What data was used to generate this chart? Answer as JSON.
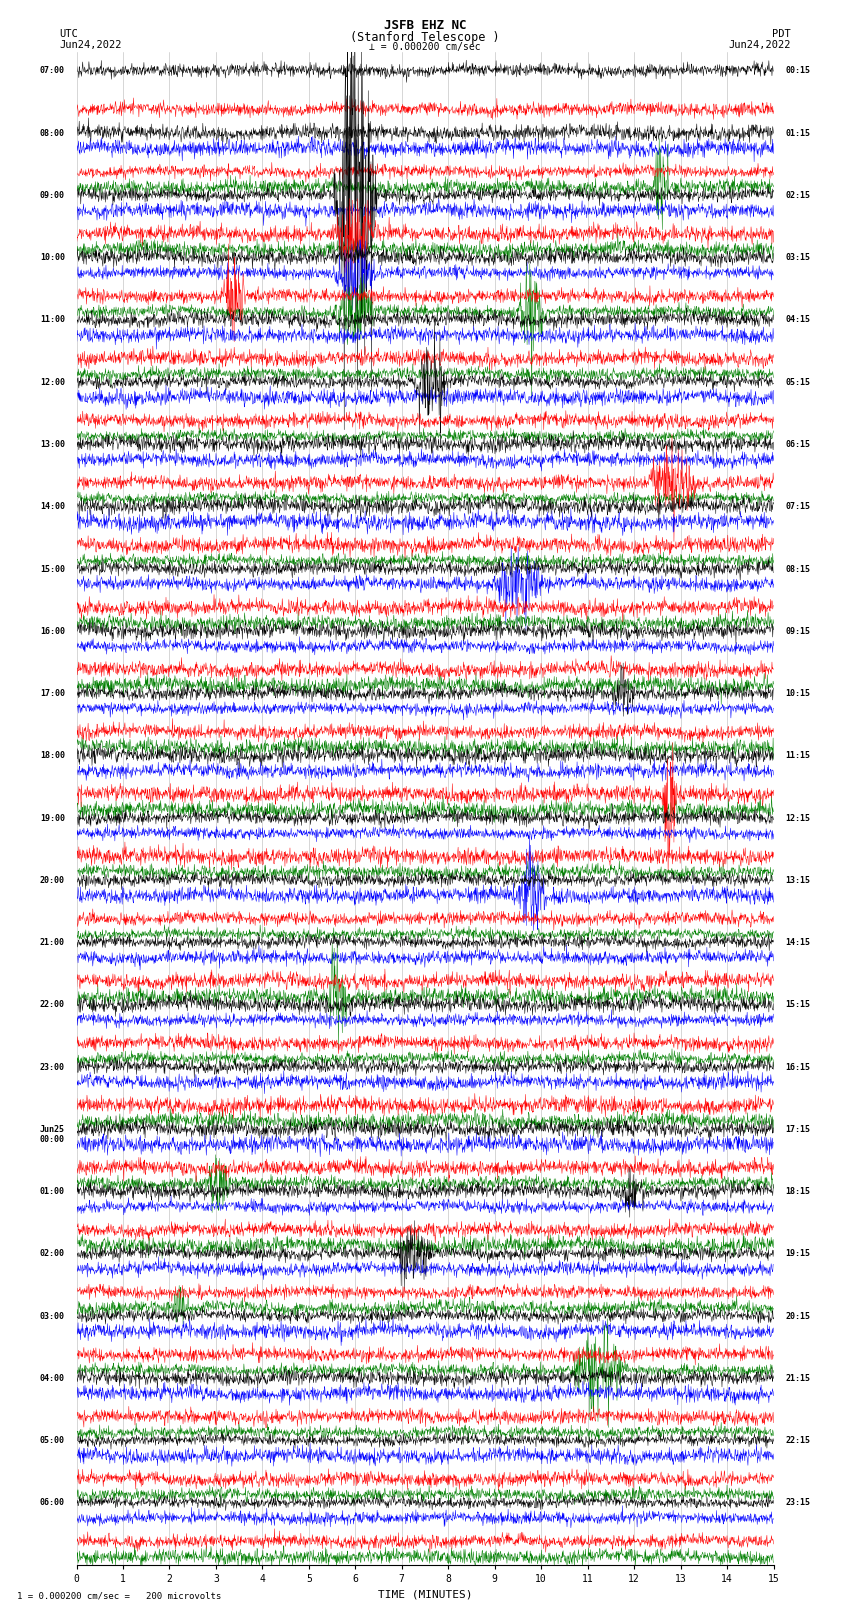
{
  "title_line1": "JSFB EHZ NC",
  "title_line2": "(Stanford Telescope )",
  "scale_label": "= 0.000200 cm/sec",
  "label_utc": "UTC",
  "label_pdt": "PDT",
  "date_left": "Jun24,2022",
  "date_right": "Jun24,2022",
  "bottom_label": "1 = 0.000200 cm/sec =   200 microvolts",
  "xlabel": "TIME (MINUTES)",
  "colors": [
    "black",
    "red",
    "blue",
    "green"
  ],
  "minutes_per_row": 15,
  "bg_color": "white",
  "left_times_utc": [
    "07:00",
    "",
    "",
    "",
    "08:00",
    "",
    "",
    "",
    "09:00",
    "",
    "",
    "",
    "10:00",
    "",
    "",
    "",
    "11:00",
    "",
    "",
    "",
    "12:00",
    "",
    "",
    "",
    "13:00",
    "",
    "",
    "",
    "14:00",
    "",
    "",
    "",
    "15:00",
    "",
    "",
    "",
    "16:00",
    "",
    "",
    "",
    "17:00",
    "",
    "",
    "",
    "18:00",
    "",
    "",
    "",
    "19:00",
    "",
    "",
    "",
    "20:00",
    "",
    "",
    "",
    "21:00",
    "",
    "",
    "",
    "22:00",
    "",
    "",
    "",
    "23:00",
    "",
    "",
    "",
    "Jun25\n00:00",
    "",
    "",
    "",
    "01:00",
    "",
    "",
    "",
    "02:00",
    "",
    "",
    "",
    "03:00",
    "",
    "",
    "",
    "04:00",
    "",
    "",
    "",
    "05:00",
    "",
    "",
    "",
    "06:00",
    "",
    "",
    ""
  ],
  "right_times_pdt": [
    "00:15",
    "",
    "",
    "",
    "01:15",
    "",
    "",
    "",
    "02:15",
    "",
    "",
    "",
    "03:15",
    "",
    "",
    "",
    "04:15",
    "",
    "",
    "",
    "05:15",
    "",
    "",
    "",
    "06:15",
    "",
    "",
    "",
    "07:15",
    "",
    "",
    "",
    "08:15",
    "",
    "",
    "",
    "09:15",
    "",
    "",
    "",
    "10:15",
    "",
    "",
    "",
    "11:15",
    "",
    "",
    "",
    "12:15",
    "",
    "",
    "",
    "13:15",
    "",
    "",
    "",
    "14:15",
    "",
    "",
    "",
    "15:15",
    "",
    "",
    "",
    "16:15",
    "",
    "",
    "",
    "17:15",
    "",
    "",
    "",
    "18:15",
    "",
    "",
    "",
    "19:15",
    "",
    "",
    "",
    "20:15",
    "",
    "",
    "",
    "21:15",
    "",
    "",
    "",
    "22:15",
    "",
    "",
    "",
    "23:15",
    "",
    "",
    ""
  ],
  "noise_seed": 42
}
